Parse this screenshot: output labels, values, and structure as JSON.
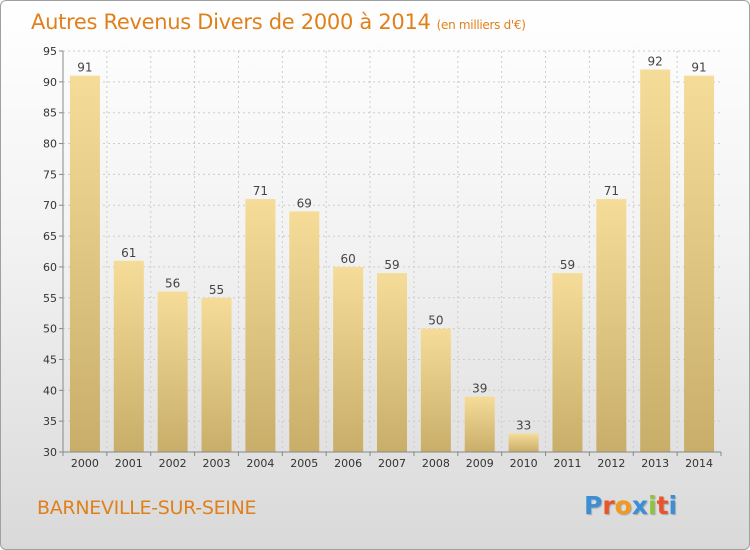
{
  "chart_data": {
    "type": "bar",
    "title": "Autres Revenus Divers de 2000 à 2014",
    "subtitle": "(en milliers d'€)",
    "categories": [
      "2000",
      "2001",
      "2002",
      "2003",
      "2004",
      "2005",
      "2006",
      "2007",
      "2008",
      "2009",
      "2010",
      "2011",
      "2012",
      "2013",
      "2014"
    ],
    "values": [
      91,
      61,
      56,
      55,
      71,
      69,
      60,
      59,
      50,
      39,
      33,
      59,
      71,
      92,
      91
    ],
    "ylim": [
      30,
      95
    ],
    "yticks": [
      30,
      35,
      40,
      45,
      50,
      55,
      60,
      65,
      70,
      75,
      80,
      85,
      90,
      95
    ],
    "grid": true,
    "xlabel": "",
    "ylabel": "",
    "colors": {
      "bar_top": "#f5dc98",
      "bar_bottom": "#c8ae69",
      "title": "#e0801c",
      "grid": "#cccccc"
    }
  },
  "footer": {
    "commune": "BARNEVILLE-SUR-SEINE",
    "logo_letters": [
      "P",
      "r",
      "o",
      "x",
      "i",
      "t",
      "i"
    ],
    "logo_colors": [
      "#3a8fd6",
      "#e8542c",
      "#f39a1e",
      "#3a8fd6",
      "#8cc63f",
      "#e8542c",
      "#3a8fd6"
    ]
  }
}
